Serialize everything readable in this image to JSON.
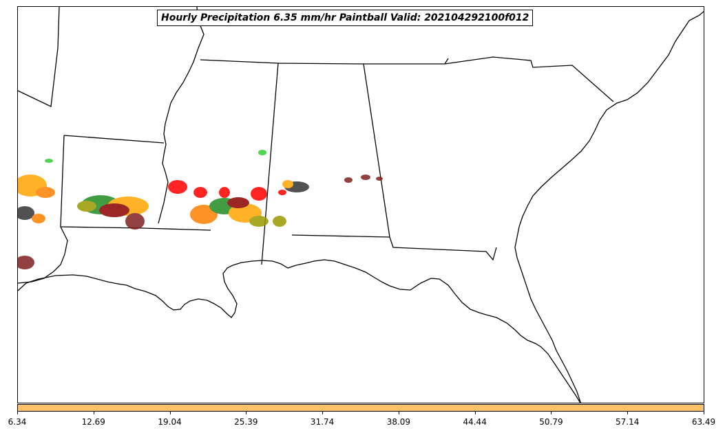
{
  "title": "Hourly Precipitation 6.35 mm/hr Paintball Valid: 202104292100f012",
  "colorbar": {
    "color": "#ffc266",
    "min": 6.34,
    "max": 63.49,
    "ticks": [
      "6.34",
      "12.69",
      "19.04",
      "25.39",
      "31.74",
      "38.09",
      "44.44",
      "50.79",
      "57.14",
      "63.49"
    ]
  },
  "colors": {
    "state_lines": "#000000",
    "paintball_members": [
      "#ffa500",
      "#ff0000",
      "#228b22",
      "#32cd32",
      "#8b0000",
      "#9a9a00",
      "#ff7f00",
      "#333333",
      "#7f1f1f"
    ]
  }
}
